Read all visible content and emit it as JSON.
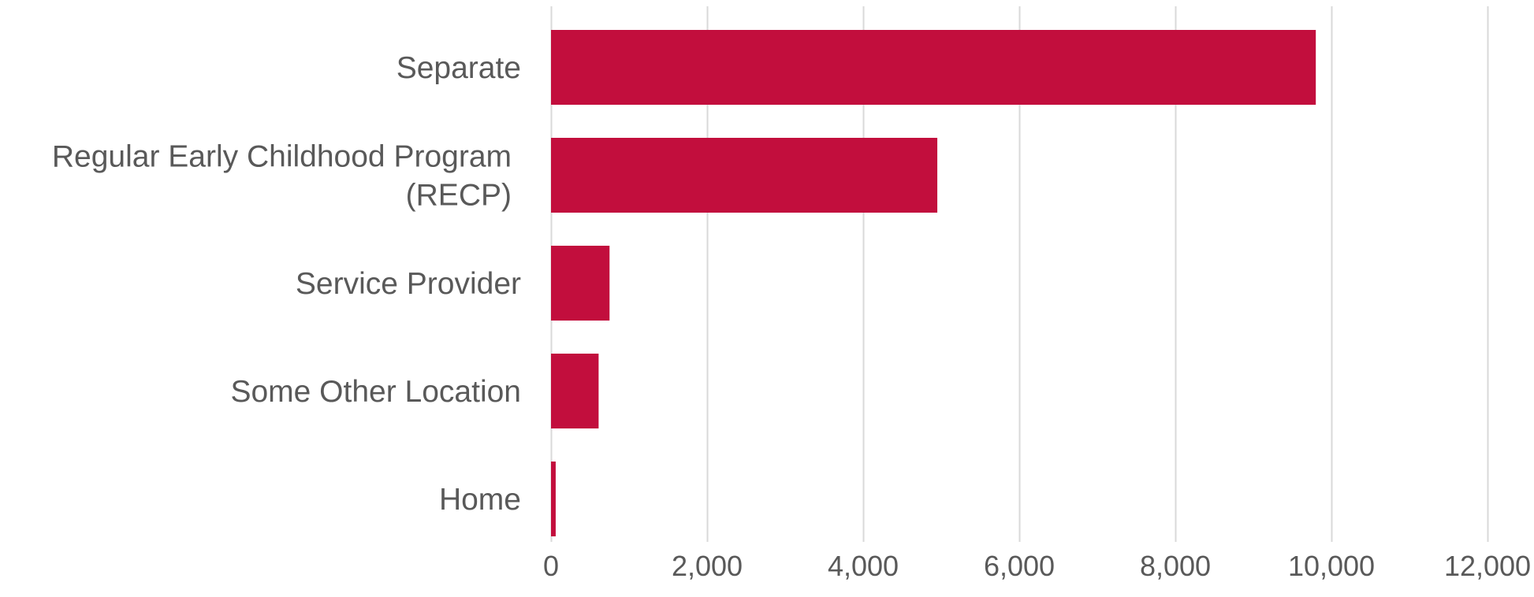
{
  "colors": {
    "bar": "#C20E3D",
    "label_text": "#595959",
    "gridline": "#D9D9D9"
  },
  "chart_data": {
    "type": "bar",
    "orientation": "horizontal",
    "title": "",
    "xlabel": "",
    "ylabel": "",
    "categories": [
      "Separate",
      "Regular Early Childhood Program (RECP)",
      "Service Provider",
      "Some Other Location",
      "Home"
    ],
    "category_label_lines": [
      [
        "Separate"
      ],
      [
        "Regular Early Childhood Program",
        "(RECP)"
      ],
      [
        "Service Provider"
      ],
      [
        "Some Other Location"
      ],
      [
        "Home"
      ]
    ],
    "values": [
      9800,
      4950,
      750,
      610,
      60
    ],
    "xlim": [
      0,
      12000
    ],
    "x_ticks": [
      0,
      2000,
      4000,
      6000,
      8000,
      10000,
      12000
    ],
    "x_tick_labels": [
      "0",
      "2,000",
      "4,000",
      "6,000",
      "8,000",
      "10,000",
      "12,000"
    ],
    "grid": "vertical",
    "legend": "none"
  }
}
